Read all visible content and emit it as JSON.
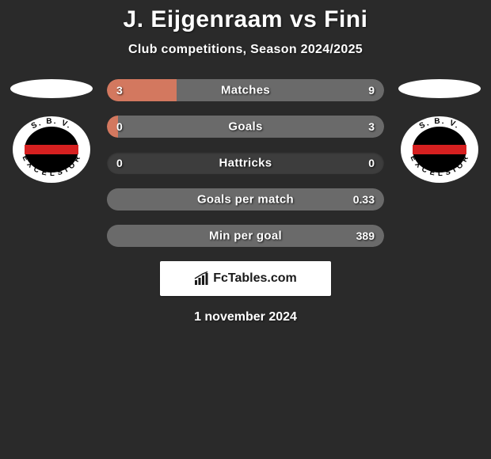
{
  "title": "J. Eijgenraam vs Fini",
  "subtitle": "Club competitions, Season 2024/2025",
  "date": "1 november 2024",
  "watermark": {
    "text": "FcTables.com"
  },
  "colors": {
    "background": "#2a2a2a",
    "bar_track": "#3d3d3d",
    "left_seg": "#d3785f",
    "right_seg": "#6a6a6a",
    "ellipse": "#ffffff",
    "text": "#ffffff"
  },
  "club_left": {
    "name": "S.B.V. Excelsior",
    "ring_text": "S.B.V.",
    "ring_text2": "EXCELSIOR"
  },
  "club_right": {
    "name": "S.B.V. Excelsior",
    "ring_text": "S.B.V.",
    "ring_text2": "EXCELSIOR"
  },
  "bars": [
    {
      "label": "Matches",
      "left_val": "3",
      "right_val": "9",
      "left_pct": 25,
      "right_pct": 75,
      "left_color": "#d3785f",
      "right_color": "#6a6a6a"
    },
    {
      "label": "Goals",
      "left_val": "0",
      "right_val": "3",
      "left_pct": 4,
      "right_pct": 96,
      "left_color": "#d3785f",
      "right_color": "#6a6a6a"
    },
    {
      "label": "Hattricks",
      "left_val": "0",
      "right_val": "0",
      "left_pct": 0,
      "right_pct": 0,
      "left_color": "#d3785f",
      "right_color": "#6a6a6a"
    },
    {
      "label": "Goals per match",
      "left_val": "",
      "right_val": "0.33",
      "left_pct": 0,
      "right_pct": 100,
      "left_color": "#d3785f",
      "right_color": "#6a6a6a"
    },
    {
      "label": "Min per goal",
      "left_val": "",
      "right_val": "389",
      "left_pct": 0,
      "right_pct": 100,
      "left_color": "#d3785f",
      "right_color": "#6a6a6a"
    }
  ]
}
